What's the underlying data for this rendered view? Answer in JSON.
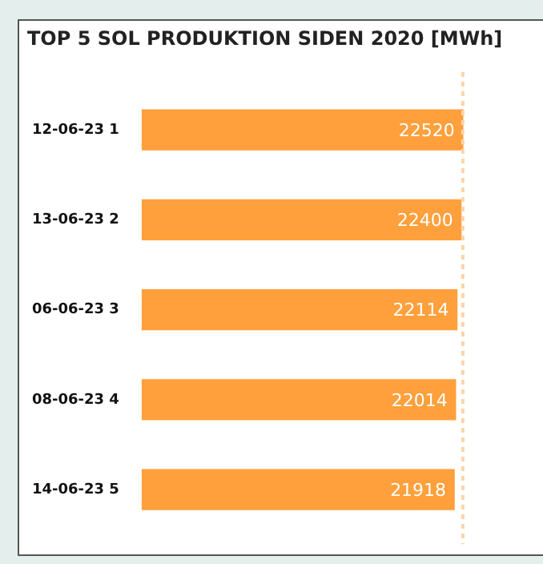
{
  "chart_data": {
    "type": "bar",
    "orientation": "horizontal",
    "title": "TOP 5 SOL PRODUKTION SIDEN 2020 [MWh]",
    "categories": [
      "12-06-23 1",
      "13-06-23 2",
      "06-06-23 3",
      "08-06-23 4",
      "14-06-23 5"
    ],
    "values": [
      22520,
      22400,
      22114,
      22014,
      21918
    ],
    "color": "#ffa03c",
    "data_labels": true,
    "ref_lines": [
      {
        "axis": "x",
        "value": 22520,
        "color": "#fcd5a8",
        "line_style": "dotted"
      }
    ]
  }
}
